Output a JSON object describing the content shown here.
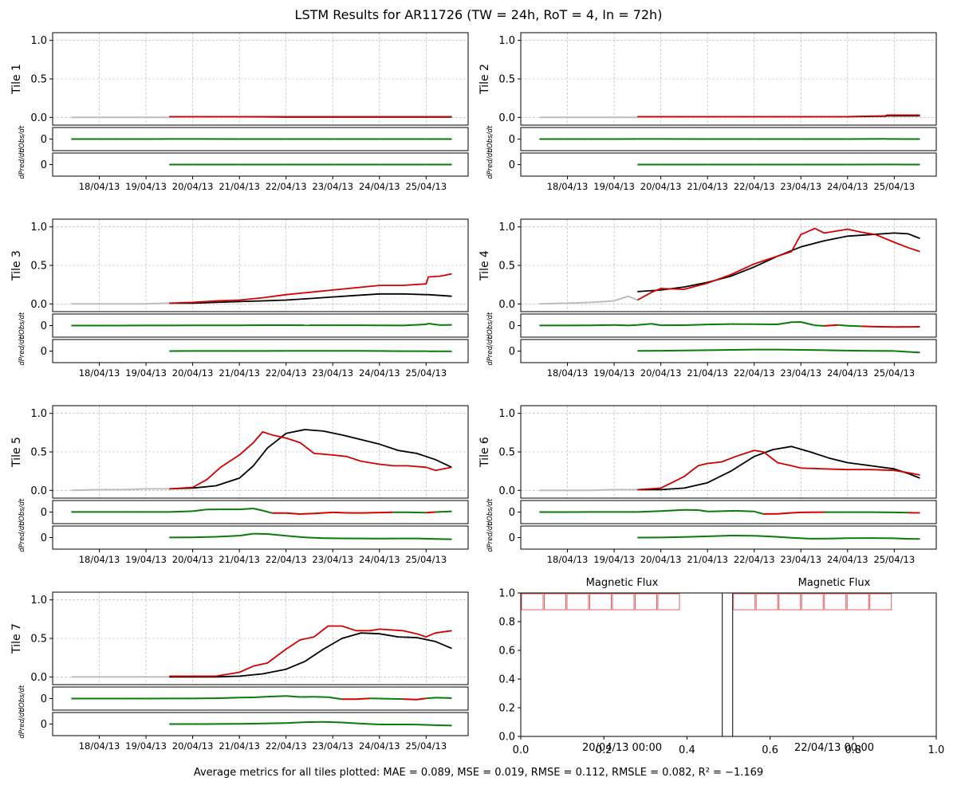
{
  "figure": {
    "title": "LSTM Results for AR11726 (TW = 24h, RoT = 4, In = 72h)",
    "footer": "Average metrics for all tiles plotted:  MAE = 0.089,  MSE = 0.019,  RMSE = 0.112,  RMSLE = 0.082,  R² = −1.169"
  },
  "colors": {
    "input": "#bdbdbd",
    "observed": "#d40000",
    "predicted": "#000000",
    "derivative_up": "#0a7a0a",
    "derivative_down": "#d40000",
    "grid": "#b0b0b0",
    "flux_box": "#e06060"
  },
  "common": {
    "date_ticks": [
      "18/04/13",
      "19/04/13",
      "20/04/13",
      "21/04/13",
      "22/04/13",
      "23/04/13",
      "24/04/13",
      "25/04/13"
    ],
    "date_tick_days": [
      18,
      19,
      20,
      21,
      22,
      23,
      24,
      25
    ],
    "x_range_days": [
      17,
      25.9
    ],
    "ylim": [
      -0.1,
      1.1
    ],
    "y_ticks": [
      "0.0",
      "0.5",
      "1.0"
    ],
    "deriv_tick": "0",
    "deriv_obs_label": "dObs/dt",
    "deriv_pred_label": "dPred/dt",
    "input_range_days": [
      17.4,
      19.5
    ],
    "forecast_range_days": [
      19.5,
      25.55
    ]
  },
  "chart_data": [
    {
      "type": "line",
      "title": "Tile 1",
      "ylabel": "Tile 1",
      "x_days": [
        17.4,
        18.0,
        18.5,
        19.0,
        19.5,
        20.0,
        21.0,
        22.0,
        23.0,
        24.0,
        25.0,
        25.55
      ],
      "input": [
        0.0,
        0.0,
        0.0,
        0.0,
        0.0
      ],
      "observed_x": [
        19.5,
        20.0,
        21.0,
        22.0,
        23.0,
        24.0,
        25.0,
        25.55
      ],
      "observed": [
        0.01,
        0.01,
        0.01,
        0.01,
        0.01,
        0.01,
        0.01,
        0.01
      ],
      "predicted": [
        0.01,
        0.01,
        0.01,
        0.005,
        0.005,
        0.005,
        0.005,
        0.005
      ]
    },
    {
      "type": "line",
      "title": "Tile 2",
      "ylabel": "Tile 2",
      "input": [
        0.0,
        0.0,
        0.0,
        0.0,
        0.0
      ],
      "observed_x": [
        19.5,
        20.0,
        21.0,
        22.0,
        23.0,
        24.0,
        24.8,
        24.85,
        25.55
      ],
      "observed": [
        0.01,
        0.01,
        0.01,
        0.01,
        0.01,
        0.01,
        0.02,
        0.03,
        0.03
      ],
      "predicted": [
        0.01,
        0.01,
        0.01,
        0.01,
        0.01,
        0.01,
        0.015,
        0.02,
        0.02
      ]
    },
    {
      "type": "line",
      "title": "Tile 3",
      "ylabel": "Tile 3",
      "input": [
        0.0,
        0.0,
        0.0,
        0.0,
        0.01
      ],
      "observed_x": [
        19.5,
        20.0,
        20.5,
        21.0,
        21.5,
        22.0,
        22.5,
        23.0,
        23.5,
        24.0,
        24.5,
        25.0,
        25.05,
        25.3,
        25.55
      ],
      "observed": [
        0.01,
        0.02,
        0.04,
        0.05,
        0.08,
        0.12,
        0.15,
        0.18,
        0.21,
        0.24,
        0.24,
        0.26,
        0.35,
        0.36,
        0.39
      ],
      "predicted": [
        0.01,
        0.01,
        0.02,
        0.03,
        0.04,
        0.05,
        0.07,
        0.09,
        0.11,
        0.13,
        0.13,
        0.12,
        0.12,
        0.11,
        0.1
      ]
    },
    {
      "type": "line",
      "title": "Tile 4",
      "ylabel": "Tile 4",
      "input_x": [
        17.4,
        18.0,
        18.5,
        19.0,
        19.3,
        19.5
      ],
      "input": [
        0.0,
        0.01,
        0.02,
        0.04,
        0.1,
        0.05
      ],
      "observed_x": [
        19.5,
        19.8,
        20.0,
        20.5,
        21.0,
        21.5,
        22.0,
        22.5,
        22.8,
        23.0,
        23.3,
        23.5,
        23.8,
        24.0,
        24.3,
        24.6,
        25.0,
        25.3,
        25.55
      ],
      "observed": [
        0.05,
        0.15,
        0.2,
        0.19,
        0.27,
        0.38,
        0.52,
        0.62,
        0.68,
        0.9,
        0.98,
        0.92,
        0.95,
        0.97,
        0.93,
        0.9,
        0.8,
        0.73,
        0.68
      ],
      "predicted_x": [
        19.5,
        20.0,
        20.5,
        21.0,
        21.5,
        22.0,
        22.5,
        23.0,
        23.5,
        24.0,
        24.5,
        25.0,
        25.3,
        25.55
      ],
      "predicted": [
        0.16,
        0.18,
        0.22,
        0.28,
        0.36,
        0.48,
        0.62,
        0.74,
        0.82,
        0.88,
        0.9,
        0.92,
        0.91,
        0.85
      ]
    },
    {
      "type": "line",
      "title": "Tile 5",
      "ylabel": "Tile 5",
      "input_x": [
        17.4,
        18.0,
        18.5,
        19.0,
        19.5
      ],
      "input": [
        0.0,
        0.01,
        0.01,
        0.02,
        0.02
      ],
      "observed_x": [
        19.5,
        20.0,
        20.3,
        20.6,
        21.0,
        21.3,
        21.5,
        21.7,
        22.0,
        22.3,
        22.6,
        23.0,
        23.3,
        23.6,
        24.0,
        24.3,
        24.6,
        25.0,
        25.2,
        25.55
      ],
      "observed": [
        0.02,
        0.04,
        0.14,
        0.3,
        0.46,
        0.62,
        0.76,
        0.72,
        0.68,
        0.62,
        0.48,
        0.46,
        0.44,
        0.38,
        0.34,
        0.32,
        0.32,
        0.3,
        0.26,
        0.3
      ],
      "predicted_x": [
        19.5,
        20.0,
        20.5,
        21.0,
        21.3,
        21.6,
        22.0,
        22.4,
        22.8,
        23.2,
        23.6,
        24.0,
        24.4,
        24.8,
        25.2,
        25.55
      ],
      "predicted": [
        0.02,
        0.03,
        0.06,
        0.16,
        0.32,
        0.55,
        0.74,
        0.79,
        0.77,
        0.72,
        0.66,
        0.6,
        0.52,
        0.48,
        0.4,
        0.3
      ]
    },
    {
      "type": "line",
      "title": "Tile 6",
      "ylabel": "Tile 6",
      "input_x": [
        17.4,
        18.0,
        18.5,
        19.0,
        19.5
      ],
      "input": [
        0.0,
        0.0,
        0.0,
        0.01,
        0.01
      ],
      "observed_x": [
        19.5,
        20.0,
        20.5,
        20.8,
        21.0,
        21.3,
        21.6,
        22.0,
        22.2,
        22.5,
        22.8,
        23.0,
        23.5,
        24.0,
        24.5,
        25.0,
        25.3,
        25.55
      ],
      "observed": [
        0.01,
        0.03,
        0.18,
        0.32,
        0.35,
        0.37,
        0.44,
        0.52,
        0.5,
        0.36,
        0.32,
        0.29,
        0.28,
        0.27,
        0.27,
        0.26,
        0.23,
        0.2
      ],
      "predicted_x": [
        19.5,
        20.0,
        20.5,
        21.0,
        21.5,
        22.0,
        22.4,
        22.8,
        23.2,
        23.6,
        24.0,
        24.5,
        25.0,
        25.3,
        25.55
      ],
      "predicted": [
        0.01,
        0.01,
        0.03,
        0.1,
        0.25,
        0.44,
        0.53,
        0.57,
        0.5,
        0.42,
        0.36,
        0.32,
        0.28,
        0.22,
        0.16
      ]
    },
    {
      "type": "line",
      "title": "Tile 7",
      "ylabel": "Tile 7",
      "input_x": [
        17.4,
        18.0,
        18.5,
        19.0,
        19.5
      ],
      "input": [
        0.0,
        0.0,
        0.0,
        0.0,
        0.0
      ],
      "observed_x": [
        19.5,
        20.0,
        20.5,
        21.0,
        21.3,
        21.6,
        22.0,
        22.3,
        22.6,
        22.9,
        23.2,
        23.5,
        23.8,
        24.0,
        24.5,
        24.8,
        25.0,
        25.2,
        25.55
      ],
      "observed": [
        0.01,
        0.01,
        0.01,
        0.06,
        0.14,
        0.18,
        0.36,
        0.48,
        0.52,
        0.66,
        0.66,
        0.6,
        0.6,
        0.62,
        0.6,
        0.56,
        0.52,
        0.57,
        0.6
      ],
      "predicted_x": [
        19.5,
        20.0,
        20.5,
        21.0,
        21.5,
        22.0,
        22.4,
        22.8,
        23.2,
        23.6,
        24.0,
        24.4,
        24.8,
        25.2,
        25.55
      ],
      "predicted": [
        0.0,
        0.0,
        0.0,
        0.01,
        0.04,
        0.1,
        0.2,
        0.36,
        0.5,
        0.57,
        0.56,
        0.52,
        0.51,
        0.46,
        0.37
      ]
    }
  ],
  "flux_panel": {
    "title_left": "Magnetic Flux",
    "title_right": "Magnetic Flux",
    "date_left": "20/04/13 00:00",
    "date_right": "22/04/13 00:00",
    "x_ticks": [
      "0.0",
      "0.2",
      "0.4",
      "0.6",
      "0.8",
      "1.0"
    ],
    "y_ticks": [
      "0.0",
      "0.2",
      "0.4",
      "0.6",
      "0.8",
      "1.0"
    ],
    "boxes_per_side": 7
  }
}
